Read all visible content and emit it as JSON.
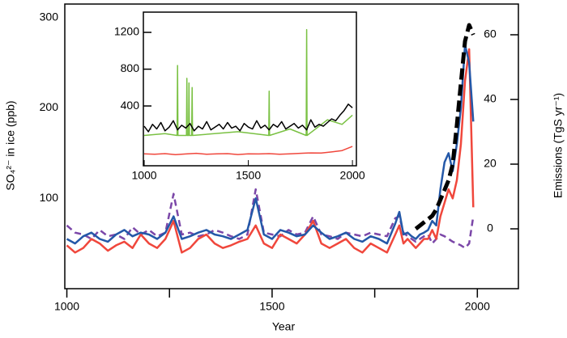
{
  "chart_data": [
    {
      "type": "line",
      "xlabel": "Year",
      "ylabel": "SO₄²⁻ in ice (ppb)",
      "y2label": "Emissions (TgS yr⁻¹)",
      "xlim": [
        995,
        2100
      ],
      "xticks": [
        1000,
        1500,
        2000
      ],
      "xminorticks": [
        1250,
        1750
      ],
      "ylim": [
        0,
        315
      ],
      "yticks": [
        100,
        200,
        300
      ],
      "y2lim": [
        -18.5,
        69.5
      ],
      "y2ticks": [
        0,
        20,
        40,
        60
      ],
      "x": [
        1000,
        1020,
        1040,
        1060,
        1080,
        1100,
        1120,
        1140,
        1160,
        1180,
        1200,
        1220,
        1240,
        1260,
        1280,
        1300,
        1320,
        1340,
        1360,
        1380,
        1400,
        1420,
        1440,
        1460,
        1480,
        1500,
        1520,
        1540,
        1560,
        1580,
        1600,
        1620,
        1640,
        1660,
        1680,
        1700,
        1720,
        1740,
        1760,
        1780,
        1800,
        1810,
        1820,
        1830,
        1840,
        1850,
        1860,
        1870,
        1880,
        1890,
        1900,
        1910,
        1920,
        1930,
        1940,
        1950,
        1960,
        1970,
        1980,
        1990,
        2000
      ],
      "series": [
        {
          "color": "#7b47a8",
          "dash": true,
          "values": [
            70,
            62,
            60,
            55,
            65,
            58,
            60,
            55,
            68,
            60,
            65,
            58,
            62,
            105,
            60,
            62,
            58,
            60,
            65,
            62,
            58,
            55,
            60,
            110,
            62,
            60,
            58,
            65,
            60,
            62,
            80,
            60,
            58,
            55,
            62,
            60,
            58,
            62,
            60,
            58,
            78,
            80,
            62,
            58,
            55,
            52,
            55,
            58,
            60,
            50,
            55,
            60,
            58,
            55,
            52,
            50,
            48,
            45,
            50,
            80,
            null
          ]
        },
        {
          "color": "#f0473c",
          "dash": false,
          "values": [
            48,
            40,
            45,
            55,
            50,
            42,
            48,
            52,
            45,
            60,
            50,
            45,
            55,
            75,
            40,
            45,
            55,
            60,
            50,
            45,
            48,
            52,
            55,
            70,
            50,
            45,
            60,
            55,
            50,
            60,
            75,
            50,
            45,
            50,
            55,
            45,
            40,
            50,
            45,
            40,
            60,
            70,
            50,
            55,
            50,
            45,
            50,
            55,
            55,
            65,
            55,
            80,
            95,
            110,
            100,
            120,
            160,
            230,
            265,
            90,
            null
          ]
        },
        {
          "color": "#2458a8",
          "dash": false,
          "values": [
            55,
            50,
            58,
            62,
            55,
            52,
            60,
            65,
            58,
            62,
            60,
            55,
            62,
            80,
            55,
            58,
            62,
            65,
            60,
            58,
            55,
            60,
            65,
            100,
            60,
            55,
            65,
            62,
            58,
            60,
            70,
            62,
            55,
            58,
            62,
            55,
            52,
            58,
            55,
            50,
            72,
            85,
            60,
            62,
            58,
            55,
            60,
            62,
            65,
            75,
            70,
            110,
            140,
            150,
            130,
            160,
            200,
            270,
            250,
            185,
            null
          ]
        },
        {
          "color": "#000000",
          "dash": true,
          "axis": "y2",
          "values": [
            null,
            null,
            null,
            null,
            null,
            null,
            null,
            null,
            null,
            null,
            null,
            null,
            null,
            null,
            null,
            null,
            null,
            null,
            null,
            null,
            null,
            null,
            null,
            null,
            null,
            null,
            null,
            null,
            null,
            null,
            null,
            null,
            null,
            null,
            null,
            null,
            null,
            null,
            null,
            null,
            null,
            null,
            null,
            null,
            null,
            0,
            1,
            2,
            3,
            4,
            6,
            9,
            12,
            15,
            20,
            32,
            45,
            58,
            63,
            60,
            null
          ]
        }
      ]
    },
    {
      "type": "line",
      "xlim": [
        996,
        2019
      ],
      "xticks": [
        1000,
        1500,
        2000
      ],
      "ylim": [
        -250,
        1420
      ],
      "yticks": [
        400,
        800,
        1200
      ],
      "series": [
        {
          "color": "#7ac143",
          "dash": false,
          "x": [
            1000,
            1100,
            1158,
            1160,
            1162,
            1203,
            1205,
            1207,
            1213,
            1215,
            1217,
            1228,
            1230,
            1232,
            1450,
            1598,
            1600,
            1602,
            1700,
            1778,
            1780,
            1782,
            1880,
            1950,
            2000
          ],
          "values": [
            80,
            100,
            80,
            840,
            80,
            80,
            700,
            80,
            80,
            650,
            80,
            80,
            600,
            80,
            120,
            80,
            560,
            80,
            150,
            80,
            1230,
            80,
            250,
            200,
            300
          ]
        },
        {
          "color": "#000000",
          "dash": false,
          "x": [
            1000,
            1020,
            1040,
            1060,
            1080,
            1100,
            1120,
            1140,
            1160,
            1180,
            1200,
            1220,
            1240,
            1260,
            1280,
            1300,
            1320,
            1340,
            1360,
            1380,
            1400,
            1420,
            1440,
            1460,
            1480,
            1500,
            1520,
            1540,
            1560,
            1580,
            1600,
            1620,
            1640,
            1660,
            1680,
            1700,
            1720,
            1740,
            1760,
            1780,
            1800,
            1820,
            1840,
            1860,
            1880,
            1900,
            1920,
            1940,
            1960,
            1980,
            2000
          ],
          "values": [
            180,
            120,
            200,
            150,
            220,
            130,
            170,
            240,
            140,
            190,
            160,
            210,
            130,
            180,
            150,
            230,
            140,
            170,
            200,
            150,
            220,
            160,
            180,
            130,
            210,
            170,
            150,
            240,
            160,
            190,
            140,
            200,
            170,
            230,
            150,
            180,
            210,
            160,
            190,
            140,
            250,
            170,
            200,
            180,
            220,
            260,
            240,
            300,
            350,
            420,
            380
          ]
        },
        {
          "color": "#f0473c",
          "dash": false,
          "x": [
            1000,
            1050,
            1100,
            1150,
            1200,
            1250,
            1300,
            1350,
            1400,
            1450,
            1500,
            1550,
            1600,
            1650,
            1700,
            1750,
            1800,
            1850,
            1900,
            1950,
            2000
          ],
          "values": [
            -120,
            -125,
            -118,
            -130,
            -122,
            -115,
            -125,
            -120,
            -118,
            -128,
            -120,
            -122,
            -118,
            -125,
            -120,
            -115,
            -110,
            -112,
            -100,
            -85,
            -40
          ]
        }
      ]
    }
  ]
}
